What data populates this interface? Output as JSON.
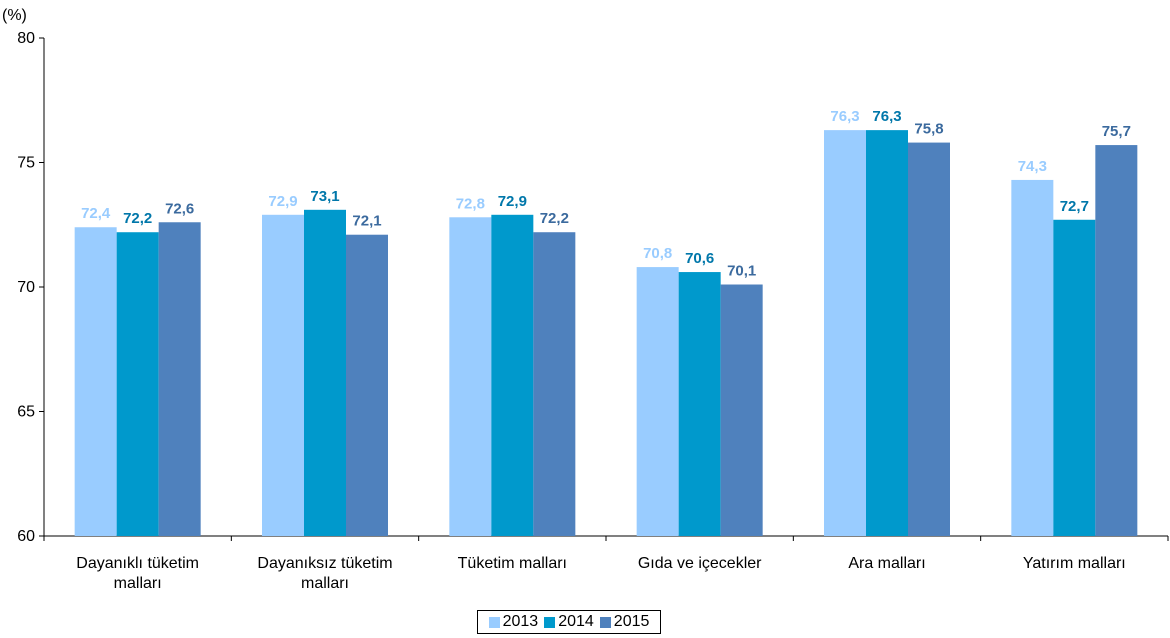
{
  "chart_data": {
    "type": "bar",
    "unit_label": "(%)",
    "categories": [
      [
        "Dayanıklı tüketim",
        "malları"
      ],
      [
        "Dayanıksız tüketim",
        "malları"
      ],
      [
        "Tüketim malları"
      ],
      [
        "Gıda ve içecekler"
      ],
      [
        "Ara malları"
      ],
      [
        "Yatırım malları"
      ]
    ],
    "series": [
      {
        "name": "2013",
        "color": "#99ccff",
        "label_color": "#99ccff",
        "values": [
          72.4,
          72.9,
          72.8,
          70.8,
          76.3,
          74.3
        ],
        "labels": [
          "72,4",
          "72,9",
          "72,8",
          "70,8",
          "76,3",
          "74,3"
        ]
      },
      {
        "name": "2014",
        "color": "#0099cc",
        "label_color": "#0077aa",
        "values": [
          72.2,
          73.1,
          72.9,
          70.6,
          76.3,
          72.7
        ],
        "labels": [
          "72,2",
          "73,1",
          "72,9",
          "70,6",
          "76,3",
          "72,7"
        ]
      },
      {
        "name": "2015",
        "color": "#4f81bd",
        "label_color": "#3b6a9e",
        "values": [
          72.6,
          72.1,
          72.2,
          70.1,
          75.8,
          75.7
        ],
        "labels": [
          "72,6",
          "72,1",
          "72,2",
          "70,1",
          "75,8",
          "75,7"
        ]
      }
    ],
    "yticks": [
      60,
      65,
      70,
      75,
      80
    ],
    "ylim": [
      60,
      80
    ],
    "grid": false,
    "legend_position": "bottom-center"
  }
}
